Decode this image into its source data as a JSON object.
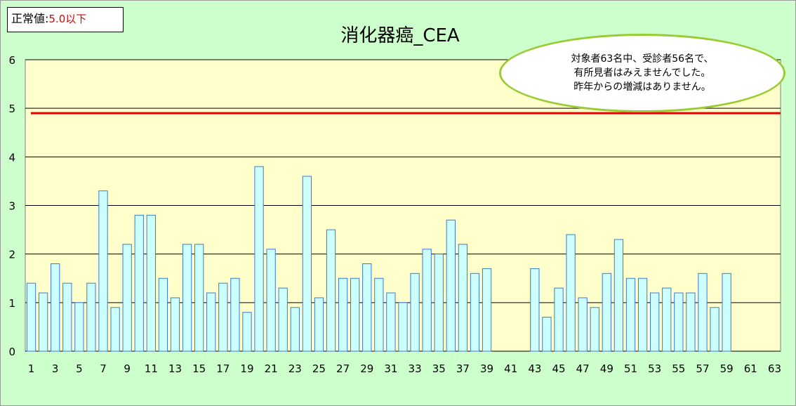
{
  "normal_value": {
    "label": "正常値:",
    "value": "5.0以下"
  },
  "callout": {
    "lines": [
      "対象者63名中、受診者56名で、",
      "有所見者はみえませんでした。",
      "昨年からの増減はありません。"
    ]
  },
  "colors": {
    "bar_fill": "#ccffff",
    "bar_stroke": "#3c78d8",
    "threshold": "#e00000",
    "plot_bg": "#ffffcc",
    "chart_bg": "#ccffcc",
    "callout_border": "#99cc33"
  },
  "chart_data": {
    "type": "bar",
    "title": "消化器癌_CEA",
    "xlabel": "",
    "ylabel": "",
    "ylim": [
      0,
      6
    ],
    "yticks": [
      0,
      1,
      2,
      3,
      4,
      5,
      6
    ],
    "xtick_labels": [
      "1",
      "3",
      "5",
      "7",
      "9",
      "11",
      "13",
      "15",
      "17",
      "19",
      "21",
      "23",
      "25",
      "27",
      "29",
      "31",
      "33",
      "35",
      "37",
      "39",
      "41",
      "43",
      "45",
      "47",
      "49",
      "51",
      "53",
      "55",
      "57",
      "59",
      "61",
      "63"
    ],
    "categories": [
      1,
      2,
      3,
      4,
      5,
      6,
      7,
      8,
      9,
      10,
      11,
      12,
      13,
      14,
      15,
      16,
      17,
      18,
      19,
      20,
      21,
      22,
      23,
      24,
      25,
      26,
      27,
      28,
      29,
      30,
      31,
      32,
      33,
      34,
      35,
      36,
      37,
      38,
      39,
      40,
      41,
      42,
      43,
      44,
      45,
      46,
      47,
      48,
      49,
      50,
      51,
      52,
      53,
      54,
      55,
      56,
      57,
      58,
      59,
      60,
      61,
      62,
      63
    ],
    "values": [
      1.4,
      1.2,
      1.8,
      1.4,
      1.0,
      1.4,
      3.3,
      0.9,
      2.2,
      2.8,
      2.8,
      1.5,
      1.1,
      2.2,
      2.2,
      1.2,
      1.4,
      1.5,
      0.8,
      3.8,
      2.1,
      1.3,
      0.9,
      3.6,
      1.1,
      2.5,
      1.5,
      1.5,
      1.8,
      1.5,
      1.2,
      1.0,
      1.6,
      2.1,
      2.0,
      2.7,
      2.2,
      1.6,
      1.7,
      null,
      null,
      null,
      1.7,
      0.7,
      1.3,
      2.4,
      1.1,
      0.9,
      1.6,
      2.3,
      1.5,
      1.5,
      1.2,
      1.3,
      1.2,
      1.2,
      1.6,
      0.9,
      1.6,
      null,
      null,
      null,
      null
    ],
    "threshold": 4.9,
    "grid": true
  }
}
